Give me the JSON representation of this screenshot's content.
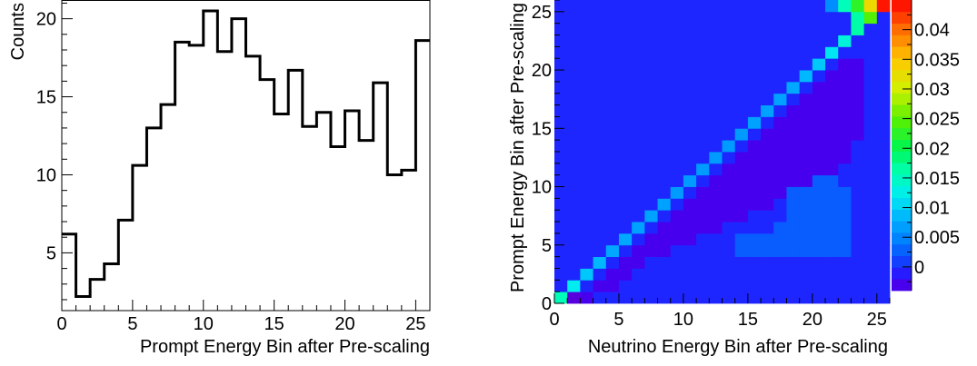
{
  "chart_data": [
    {
      "type": "bar",
      "histogram_style": "step",
      "xlabel": "Prompt Energy Bin after Pre-scaling",
      "ylabel": "Counts",
      "xlim": [
        0,
        26
      ],
      "ylim": [
        1.3,
        21.2
      ],
      "xticks": [
        0,
        5,
        10,
        15,
        20,
        25
      ],
      "yticks": [
        5,
        10,
        15,
        20
      ],
      "bin_edges": [
        0,
        1,
        2,
        3,
        4,
        5,
        6,
        7,
        8,
        9,
        10,
        11,
        12,
        13,
        14,
        15,
        16,
        17,
        18,
        19,
        20,
        21,
        22,
        23,
        24,
        25,
        26
      ],
      "values": [
        6.2,
        2.2,
        3.3,
        4.3,
        7.1,
        10.6,
        13.0,
        14.5,
        18.5,
        18.3,
        20.5,
        17.9,
        20.0,
        17.6,
        16.1,
        13.9,
        16.7,
        13.1,
        14.0,
        11.8,
        14.1,
        12.2,
        15.9,
        10.0,
        10.3,
        18.6
      ]
    },
    {
      "type": "heatmap",
      "xlabel": "Neutrino Energy Bin after Pre-scaling",
      "ylabel": "Prompt Energy Bin after Pre-scaling",
      "xlim": [
        0,
        26
      ],
      "ylim": [
        0,
        26
      ],
      "xticks": [
        0,
        5,
        10,
        15,
        20,
        25
      ],
      "yticks": [
        0,
        5,
        10,
        15,
        20,
        25
      ],
      "bins": 26,
      "zlim": [
        -0.004,
        0.045
      ],
      "colorbar_ticks": [
        0,
        0.005,
        0.01,
        0.015,
        0.02,
        0.025,
        0.03,
        0.035,
        0.04
      ],
      "colorbar_tick_labels": [
        "0",
        "0.005",
        "0.01",
        "0.015",
        "0.02",
        "0.025",
        "0.03",
        "0.035",
        "0.04"
      ],
      "background_value": -0.0005,
      "diagonal_values": [
        0.0155,
        0.012,
        0.0095,
        0.0085,
        0.0075,
        0.0075,
        0.007,
        0.007,
        0.007,
        0.0065,
        0.0065,
        0.0065,
        0.0065,
        0.0065,
        0.0065,
        0.007,
        0.007,
        0.007,
        0.0075,
        0.0085,
        0.0095,
        0.0115,
        0.0135,
        0.0165,
        0.0245,
        0.0335
      ],
      "off_diagonal_cells": [
        {
          "x": 1,
          "y": 0,
          "value": -0.0035
        },
        {
          "x": 2,
          "y": 0,
          "value": -0.003
        },
        {
          "x": 21,
          "y": 25,
          "value": 0.0055
        },
        {
          "x": 22,
          "y": 25,
          "value": 0.0155
        },
        {
          "x": 23,
          "y": 25,
          "value": 0.0225
        },
        {
          "x": 24,
          "y": 25,
          "value": 0.033
        },
        {
          "x": 25,
          "y": 25,
          "value": 0.044
        },
        {
          "x": 23,
          "y": 24,
          "value": 0.0165
        }
      ],
      "lower_band_value": -0.003,
      "lower_band_extent": [
        {
          "y": 1,
          "x_from": 3,
          "x_to": 4
        },
        {
          "y": 2,
          "x_from": 4,
          "x_to": 5
        },
        {
          "y": 3,
          "x_from": 5,
          "x_to": 6
        },
        {
          "y": 4,
          "x_from": 6,
          "x_to": 8
        },
        {
          "y": 5,
          "x_from": 7,
          "x_to": 10
        },
        {
          "y": 6,
          "x_from": 8,
          "x_to": 12
        },
        {
          "y": 7,
          "x_from": 9,
          "x_to": 14
        },
        {
          "y": 8,
          "x_from": 10,
          "x_to": 16
        },
        {
          "y": 9,
          "x_from": 11,
          "x_to": 18
        },
        {
          "y": 10,
          "x_from": 12,
          "x_to": 20
        },
        {
          "y": 11,
          "x_from": 13,
          "x_to": 21
        },
        {
          "y": 12,
          "x_from": 14,
          "x_to": 22
        },
        {
          "y": 13,
          "x_from": 15,
          "x_to": 22
        },
        {
          "y": 14,
          "x_from": 16,
          "x_to": 23
        },
        {
          "y": 15,
          "x_from": 17,
          "x_to": 23
        },
        {
          "y": 16,
          "x_from": 18,
          "x_to": 23
        },
        {
          "y": 17,
          "x_from": 19,
          "x_to": 23
        },
        {
          "y": 18,
          "x_from": 20,
          "x_to": 23
        },
        {
          "y": 19,
          "x_from": 21,
          "x_to": 23
        },
        {
          "y": 20,
          "x_from": 22,
          "x_to": 23
        }
      ],
      "blob_value": 0.0025,
      "blob_cells": [
        [
          14,
          4
        ],
        [
          15,
          4
        ],
        [
          16,
          4
        ],
        [
          17,
          4
        ],
        [
          18,
          4
        ],
        [
          19,
          4
        ],
        [
          20,
          4
        ],
        [
          21,
          4
        ],
        [
          22,
          4
        ],
        [
          14,
          5
        ],
        [
          15,
          5
        ],
        [
          16,
          5
        ],
        [
          17,
          5
        ],
        [
          18,
          5
        ],
        [
          19,
          5
        ],
        [
          20,
          5
        ],
        [
          21,
          5
        ],
        [
          22,
          5
        ],
        [
          17,
          6
        ],
        [
          18,
          6
        ],
        [
          19,
          6
        ],
        [
          20,
          6
        ],
        [
          21,
          6
        ],
        [
          22,
          6
        ],
        [
          18,
          7
        ],
        [
          19,
          7
        ],
        [
          20,
          7
        ],
        [
          21,
          7
        ],
        [
          22,
          7
        ],
        [
          18,
          8
        ],
        [
          19,
          8
        ],
        [
          20,
          8
        ],
        [
          21,
          8
        ],
        [
          22,
          8
        ],
        [
          18,
          9
        ],
        [
          19,
          9
        ],
        [
          20,
          9
        ],
        [
          21,
          9
        ],
        [
          22,
          9
        ],
        [
          20,
          10
        ],
        [
          21,
          10
        ]
      ]
    }
  ]
}
